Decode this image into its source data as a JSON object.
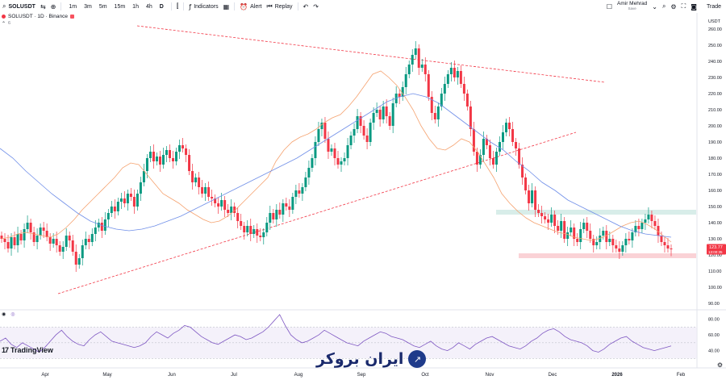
{
  "toolbar": {
    "symbol": "SOLUSDT",
    "timeframes": [
      "1m",
      "3m",
      "5m",
      "15m",
      "1h",
      "4h",
      "D"
    ],
    "active_timeframe": "D",
    "indicators_label": "Indicators",
    "alert_label": "Alert",
    "replay_label": "Replay",
    "user_name": "Amir Mehrad",
    "user_sub": "Save",
    "trade_label": "Trade"
  },
  "legend": {
    "title": "SOLUSDT · 1D · Binance",
    "sub": "6"
  },
  "price_scale": {
    "currency": "USDT",
    "ticks": [
      "260.00",
      "250.00",
      "240.00",
      "230.00",
      "220.00",
      "210.00",
      "200.00",
      "190.00",
      "180.00",
      "170.00",
      "160.00",
      "150.00",
      "140.00",
      "130.00",
      "120.00",
      "110.00",
      "100.00",
      "90.00"
    ],
    "last_price": "123.77",
    "countdown": "13:00:35"
  },
  "rsi_scale": {
    "ticks": [
      "80.00",
      "60.00",
      "40.00"
    ]
  },
  "time_axis": [
    "Apr",
    "May",
    "Jun",
    "Jul",
    "Aug",
    "Sep",
    "Oct",
    "Nov",
    "Dec",
    "2026",
    "Feb"
  ],
  "branding": {
    "tradingview": "TradingView",
    "watermark": "ایران بروکر"
  },
  "chart_data": {
    "type": "candlestick",
    "y_unit": "USDT",
    "ylim": [
      85,
      265
    ],
    "close": [
      130,
      128,
      124,
      131,
      126,
      133,
      129,
      136,
      140,
      134,
      128,
      132,
      137,
      135,
      131,
      127,
      130,
      126,
      122,
      125,
      132,
      129,
      122,
      114,
      118,
      126,
      130,
      128,
      133,
      137,
      140,
      135,
      142,
      146,
      150,
      147,
      153,
      155,
      152,
      158,
      156,
      150,
      158,
      165,
      172,
      180,
      184,
      178,
      181,
      176,
      182,
      185,
      180,
      178,
      184,
      188,
      186,
      182,
      172,
      165,
      168,
      162,
      158,
      162,
      156,
      155,
      152,
      150,
      154,
      148,
      146,
      150,
      146,
      141,
      138,
      134,
      138,
      133,
      136,
      132,
      131,
      134,
      140,
      146,
      142,
      148,
      145,
      152,
      150,
      148,
      156,
      160,
      158,
      162,
      168,
      174,
      180,
      190,
      198,
      202,
      192,
      184,
      186,
      180,
      176,
      178,
      180,
      188,
      194,
      198,
      206,
      200,
      194,
      190,
      202,
      208,
      210,
      204,
      212,
      206,
      200,
      214,
      220,
      218,
      224,
      232,
      238,
      244,
      248,
      236,
      238,
      232,
      218,
      208,
      204,
      212,
      220,
      226,
      232,
      236,
      230,
      234,
      226,
      220,
      212,
      198,
      184,
      176,
      182,
      192,
      188,
      180,
      176,
      184,
      190,
      196,
      202,
      198,
      190,
      186,
      176,
      168,
      160,
      152,
      160,
      148,
      146,
      144,
      142,
      140,
      145,
      138,
      135,
      141,
      130,
      134,
      137,
      130,
      128,
      136,
      140,
      135,
      130,
      126,
      128,
      132,
      135,
      128,
      130,
      126,
      124,
      122,
      126,
      130,
      129,
      134,
      138,
      136,
      140,
      142,
      145,
      141,
      138,
      132,
      128,
      126,
      124,
      123.77
    ],
    "ema_fast_sample": [
      130,
      131,
      133,
      134,
      133,
      132,
      131,
      133,
      137,
      142,
      148,
      153,
      158,
      163,
      168,
      174,
      177,
      176,
      170,
      164,
      158,
      155,
      152,
      148,
      145,
      142,
      140,
      141,
      144,
      148,
      153,
      158,
      163,
      168,
      178,
      185,
      190,
      193,
      195,
      198,
      202,
      205,
      207,
      212,
      218,
      225,
      232,
      234,
      230,
      225,
      218,
      210,
      200,
      192,
      186,
      185,
      188,
      192,
      190,
      184,
      176,
      168,
      158,
      152,
      147,
      143,
      140,
      138,
      136,
      134,
      133,
      131,
      130,
      129,
      130,
      132,
      135,
      138,
      140,
      141,
      139,
      136,
      132,
      128
    ],
    "ma_slow_sample": [
      186,
      180,
      172,
      165,
      158,
      152,
      146,
      141,
      138,
      136,
      135,
      136,
      138,
      141,
      144,
      148,
      152,
      156,
      160,
      164,
      168,
      172,
      176,
      180,
      185,
      190,
      195,
      200,
      205,
      210,
      215,
      218,
      220,
      218,
      214,
      208,
      202,
      196,
      190,
      185,
      178,
      172,
      165,
      160,
      154,
      150,
      146,
      142,
      138,
      135,
      133,
      132,
      131
    ],
    "levels": {
      "resistance_zone": [
        145,
        148
      ],
      "support_zone": [
        118,
        121
      ]
    },
    "triangle": {
      "upper_start": [
        0,
        262
      ],
      "upper_end": [
        1,
        227
      ],
      "lower_start": [
        0,
        96
      ],
      "lower_end": [
        1,
        196
      ]
    },
    "rsi": [
      52,
      56,
      48,
      44,
      50,
      46,
      42,
      38,
      44,
      52,
      60,
      66,
      58,
      52,
      48,
      46,
      54,
      60,
      64,
      58,
      52,
      50,
      48,
      46,
      44,
      46,
      50,
      58,
      64,
      60,
      56,
      62,
      66,
      72,
      70,
      64,
      58,
      54,
      50,
      48,
      52,
      56,
      60,
      58,
      54,
      56,
      60,
      64,
      70,
      78,
      86,
      72,
      60,
      54,
      50,
      52,
      56,
      60,
      66,
      62,
      58,
      54,
      50,
      48,
      46,
      52,
      56,
      60,
      64,
      62,
      58,
      56,
      54,
      50,
      46,
      44,
      48,
      52,
      46,
      42,
      40,
      44,
      50,
      46,
      42,
      48,
      52,
      56,
      58,
      54,
      50,
      46,
      44,
      42,
      46,
      52,
      56,
      62,
      66,
      68,
      64,
      58,
      54,
      52,
      50,
      46,
      40,
      38,
      42,
      48,
      52,
      56,
      58,
      52,
      48,
      44,
      42,
      40,
      42,
      44,
      46
    ]
  }
}
